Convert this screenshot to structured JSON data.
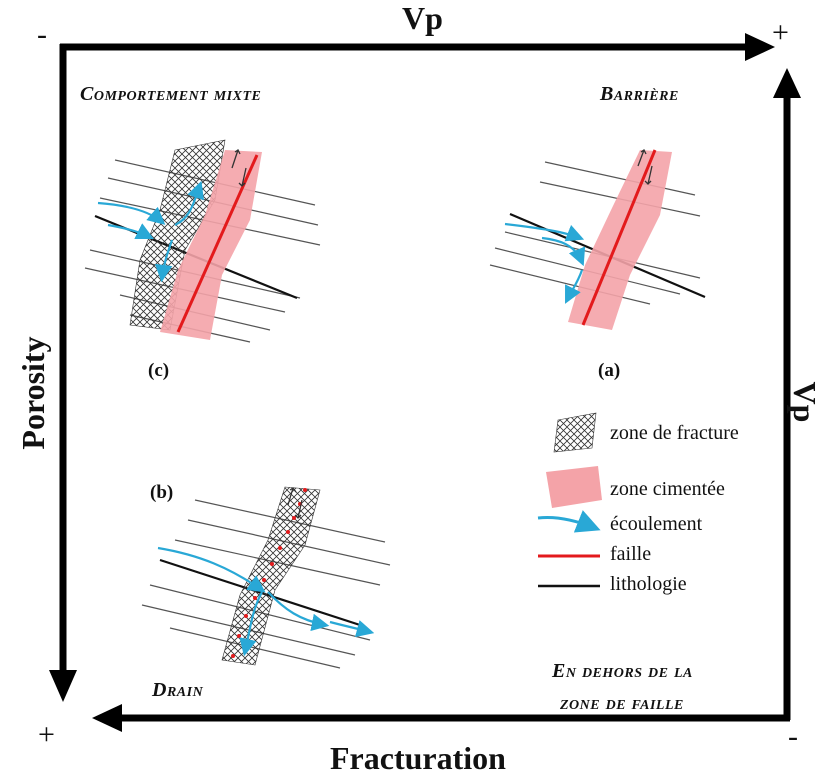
{
  "axes": {
    "top": {
      "label": "Vp",
      "start_sign": "-",
      "end_sign": "+"
    },
    "left": {
      "label": "Porosity",
      "end_sign": "+"
    },
    "right": {
      "label": "Vp"
    },
    "bottom": {
      "label": "Fracturation",
      "end_sign": "-"
    }
  },
  "panels": {
    "mixed": {
      "title": "Comportement mixte",
      "id": "(c)"
    },
    "barrier": {
      "title": "Barrière",
      "id": "(a)"
    },
    "drain": {
      "title": "Drain",
      "id": "(b)"
    },
    "outside": {
      "title_line1": "En dehors de la",
      "title_line2": "zone de faille"
    }
  },
  "legend": [
    {
      "label": "zone de fracture",
      "icon": "crosshatch-icon"
    },
    {
      "label": "zone cimentée",
      "icon": "cemented-zone-icon"
    },
    {
      "label": "écoulement",
      "icon": "flow-arrow-icon"
    },
    {
      "label": "faille",
      "icon": "fault-line-icon"
    },
    {
      "label": "lithologie",
      "icon": "lithology-line-icon"
    }
  ],
  "colors": {
    "frame": "#000000",
    "fault": "#e31a1c",
    "cemented": "#f4a3a8",
    "flow": "#29a8d6",
    "bed": "#555555",
    "lithology": "#111111"
  }
}
